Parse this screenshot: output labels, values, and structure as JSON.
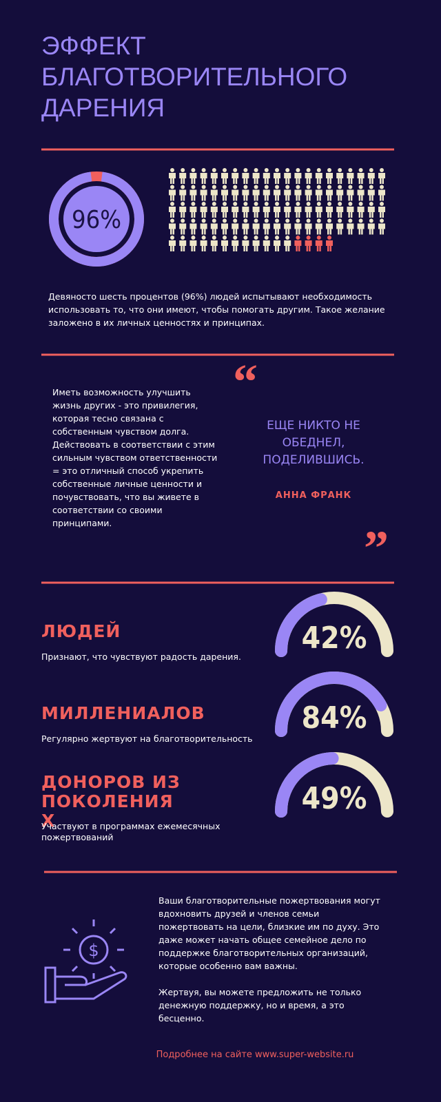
{
  "header": {
    "title": "ЭФФЕКТ БЛАГОТВОРИТЕЛЬНОГО ДАРЕНИЯ"
  },
  "intro": {
    "value": 96,
    "label": "96%",
    "text": "Девяносто шесть процентов (96%) людей испытывают необходимость использовать то, что они имеют, чтобы помогать другим. Такое желание заложено в их личных ценностях и принципах."
  },
  "quote_section": {
    "text": "Иметь возможность улучшить жизнь других - это привилегия, которая тесно связана с собственным чувством долга. Действовать в соответствии с этим сильным чувством ответственности = это отличный способ укрепить собственные личные ценности и почувствовать, что вы живете в соответствии со своими принципами.",
    "quote": "ЕЩЕ НИКТО НЕ ОБЕДНЕЛ, ПОДЕЛИВШИСЬ.",
    "author": "АННА ФРАНК"
  },
  "stats": [
    {
      "title": "ЛЮДЕЙ",
      "text": "Признают, что чувствуют радость дарения.",
      "value": 42,
      "label": "42%"
    },
    {
      "title": "МИЛЛЕНИАЛОВ",
      "text": "Регулярно жертвуют на благотворительность",
      "value": 84,
      "label": "84%"
    },
    {
      "title": "ДОНОРОВ ИЗ ПОКОЛЕНИЯ X",
      "text": "Участвуют в программах ежемесячных пожертвований",
      "value": 49,
      "label": "49%"
    }
  ],
  "closing": {
    "paragraphs": [
      "Ваши благотворительные пожертвования могут вдохновить друзей и членов семьи пожертвовать на цели, близкие им по духу. Это даже может начать общее семейное дело по поддержке благотворительных организаций, которые особенно вам важны.",
      "Жертвуя, вы можете предложить не только денежную поддержку, но и время, а это бесценно."
    ],
    "footer": "Подробнее на сайте www.super-website.ru"
  }
}
